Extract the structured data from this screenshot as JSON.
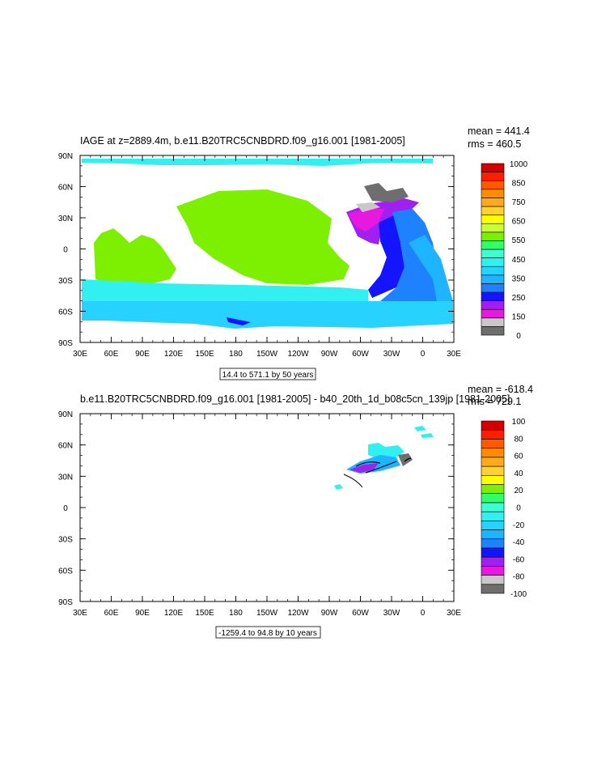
{
  "colors": {
    "palette_top": [
      "#6e6e6e",
      "#c8c8c8",
      "#e818e0",
      "#a020f0",
      "#1414ff",
      "#1e82ff",
      "#1eb4ff",
      "#28d2ff",
      "#32f0f0",
      "#3cffd2",
      "#32ff64",
      "#7cf000",
      "#c8ff32",
      "#ffff00",
      "#ffd232",
      "#ffaa1e",
      "#ff8c00",
      "#ff5a00",
      "#ff1e00",
      "#d20000"
    ],
    "palette_bottom": [
      "#6e6e6e",
      "#c8c8c8",
      "#e818e0",
      "#a020f0",
      "#1414ff",
      "#1e82ff",
      "#1eb4ff",
      "#28d2ff",
      "#32f0f0",
      "#3cffd2",
      "#32ff64",
      "#7cf000",
      "#ffff00",
      "#ffd232",
      "#ffaa1e",
      "#ff8c00",
      "#ff5a00",
      "#ff1e00",
      "#d20000"
    ]
  },
  "chart_data": [
    {
      "type": "heatmap",
      "title": "IAGE at z=2889.4m, b.e11.B20TRC5CNBDRD.f09_g16.001 [1981-2005]",
      "stats": {
        "mean": "mean = 441.4",
        "rms": "rms = 460.5"
      },
      "x_ticks": [
        "30E",
        "60E",
        "90E",
        "120E",
        "150E",
        "180",
        "150W",
        "120W",
        "90W",
        "60W",
        "30W",
        "0",
        "30E"
      ],
      "y_ticks": [
        "90N",
        "60N",
        "30N",
        "0",
        "30S",
        "60S",
        "90S"
      ],
      "colorbar_labels": [
        "1000",
        "850",
        "750",
        "650",
        "550",
        "450",
        "350",
        "250",
        "150",
        "0"
      ],
      "contour_info": "14.4 to 571.1 by 50 years",
      "regions": [
        {
          "name": "arctic",
          "color_index": 8
        },
        {
          "name": "north-pacific",
          "color_index": 11
        },
        {
          "name": "indian",
          "color_index": 11
        },
        {
          "name": "southern-ocean",
          "color_index": 7
        },
        {
          "name": "north-atlantic",
          "color_index": 3
        },
        {
          "name": "atlantic",
          "color_index": 5
        }
      ]
    },
    {
      "type": "heatmap",
      "title": "b.e11.B20TRC5CNBDRD.f09_g16.001 [1981-2005] - b40_20th_1d_b08c5cn_139jp [1981-2005]",
      "stats": {
        "mean": "mean = -618.4",
        "rms": "rms = 729.1"
      },
      "x_ticks": [
        "30E",
        "60E",
        "90E",
        "120E",
        "150E",
        "180",
        "150W",
        "120W",
        "90W",
        "60W",
        "30W",
        "0",
        "30E"
      ],
      "y_ticks": [
        "90N",
        "60N",
        "30N",
        "0",
        "30S",
        "60S",
        "90S"
      ],
      "colorbar_labels": [
        "100",
        "80",
        "60",
        "40",
        "20",
        "0",
        "-20",
        "-40",
        "-60",
        "-80",
        "-100"
      ],
      "contour_info": "-1259.4 to 94.8 by 10 years"
    }
  ]
}
